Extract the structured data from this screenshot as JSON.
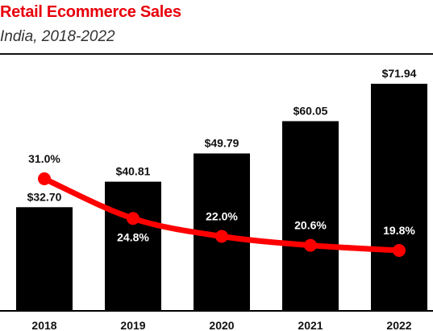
{
  "chart_data": {
    "type": "bar",
    "title": "Retail Ecommerce Sales",
    "subtitle": "India, 2018-2022",
    "categories": [
      "2018",
      "2019",
      "2020",
      "2021",
      "2022"
    ],
    "series": [
      {
        "values": [
          32.7,
          40.81,
          49.79,
          60.05,
          71.94
        ],
        "labels": [
          "$32.70",
          "$40.81",
          "$49.79",
          "$60.05",
          "$71.94"
        ],
        "color": "#000000"
      },
      {
        "type": "line",
        "values": [
          31.0,
          24.8,
          22.0,
          20.6,
          19.8
        ],
        "labels": [
          "31.0%",
          "24.8%",
          "22.0%",
          "20.6%",
          "19.8%"
        ],
        "color": "#ff0000"
      }
    ],
    "xlabel": "",
    "ylabel": "",
    "grid": false
  }
}
